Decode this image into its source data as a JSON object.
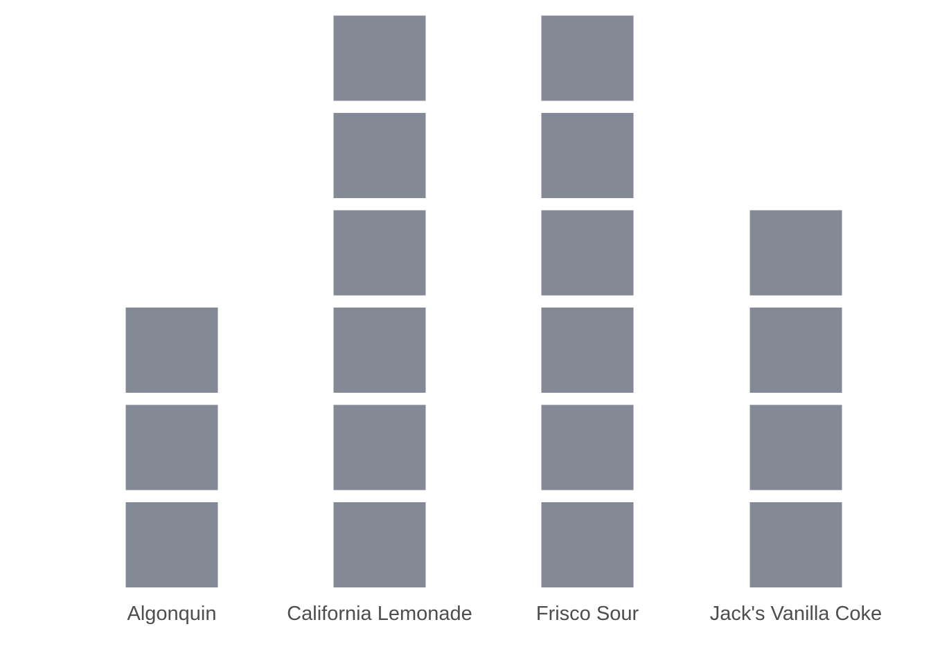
{
  "chart_data": {
    "type": "bar",
    "style": "stacked unit squares (pictograph)",
    "categories": [
      "Algonquin",
      "California Lemonade",
      "Frisco Sour",
      "Jack's Vanilla Coke"
    ],
    "values": [
      3,
      6,
      6,
      4
    ],
    "title": "",
    "xlabel": "",
    "ylabel": "",
    "ylim": [
      0,
      6
    ],
    "grid": false,
    "legend": "none",
    "colors": {
      "square": "#848a95",
      "tick_text": "#4d4d4d",
      "background": "#ffffff"
    }
  }
}
